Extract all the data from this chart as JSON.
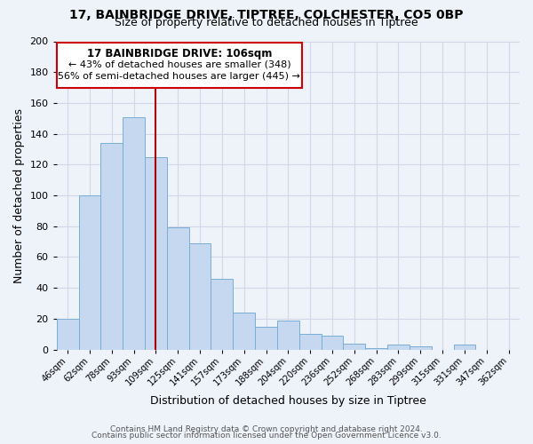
{
  "title1": "17, BAINBRIDGE DRIVE, TIPTREE, COLCHESTER, CO5 0BP",
  "title2": "Size of property relative to detached houses in Tiptree",
  "xlabel": "Distribution of detached houses by size in Tiptree",
  "ylabel": "Number of detached properties",
  "categories": [
    "46sqm",
    "62sqm",
    "78sqm",
    "93sqm",
    "109sqm",
    "125sqm",
    "141sqm",
    "157sqm",
    "173sqm",
    "188sqm",
    "204sqm",
    "220sqm",
    "236sqm",
    "252sqm",
    "268sqm",
    "283sqm",
    "299sqm",
    "315sqm",
    "331sqm",
    "347sqm",
    "362sqm"
  ],
  "values": [
    20,
    100,
    134,
    151,
    125,
    79,
    69,
    46,
    24,
    15,
    19,
    10,
    9,
    4,
    1,
    3,
    2,
    0,
    3,
    0,
    0
  ],
  "bar_color": "#c5d8ef",
  "bar_edge_color": "#7aaed6",
  "highlight_bar_index": 4,
  "highlight_line_color": "#aa0000",
  "annotation_title": "17 BAINBRIDGE DRIVE: 106sqm",
  "annotation_line1": "← 43% of detached houses are smaller (348)",
  "annotation_line2": "56% of semi-detached houses are larger (445) →",
  "annotation_box_color": "#ffffff",
  "annotation_box_edge": "#cc0000",
  "ylim": [
    0,
    200
  ],
  "yticks": [
    0,
    20,
    40,
    60,
    80,
    100,
    120,
    140,
    160,
    180,
    200
  ],
  "footer1": "Contains HM Land Registry data © Crown copyright and database right 2024.",
  "footer2": "Contains public sector information licensed under the Open Government Licence v3.0.",
  "background_color": "#eef2f9",
  "grid_color": "#d0d8e8",
  "title_fontsize": 10,
  "subtitle_fontsize": 9
}
